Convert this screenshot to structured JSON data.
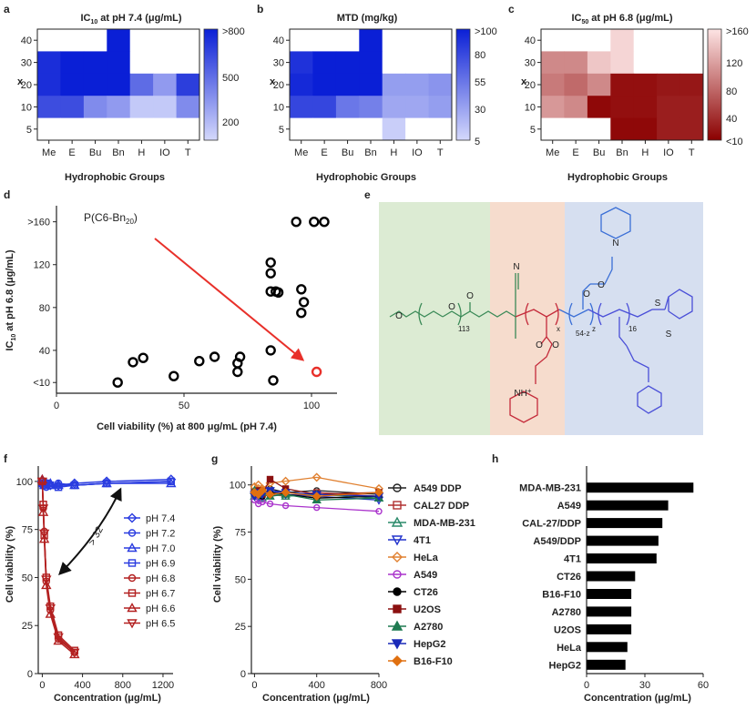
{
  "colors": {
    "blue_dark": "#0a1fd6",
    "blue_light": "#d4d8fb",
    "red_dark": "#8b0000",
    "red_light": "#fde4e4",
    "green_bg": "#dcebd3",
    "orange_bg": "#f6dccd",
    "blue_bg": "#d6dff0",
    "peg_green": "#3b8a57",
    "red_struct": "#c42a3a",
    "blue_struct": "#3b6fd6",
    "blue_struct2": "#4a4fd8"
  },
  "chart_data": [
    {
      "panel": "a",
      "type": "heatmap",
      "title": "IC10 at pH 7.4 (μg/mL)",
      "title_main": "IC",
      "title_sub": "10",
      "title_rest": " at pH 7.4 (μg/mL)",
      "xlabel": "Hydrophobic Groups",
      "ylabel": "x",
      "categories": [
        "Me",
        "E",
        "Bu",
        "Bn",
        "H",
        "IO",
        "T"
      ],
      "y": [
        "40",
        "30",
        "20",
        "10",
        "5"
      ],
      "colorbar_ticks": [
        ">800",
        "500",
        "200"
      ],
      "values": [
        [
          null,
          null,
          null,
          800,
          null,
          null,
          null
        ],
        [
          750,
          800,
          800,
          800,
          null,
          null,
          null
        ],
        [
          750,
          800,
          800,
          800,
          550,
          400,
          700
        ],
        [
          650,
          650,
          450,
          400,
          250,
          250,
          450
        ],
        [
          null,
          null,
          null,
          null,
          null,
          null,
          null
        ]
      ]
    },
    {
      "panel": "b",
      "type": "heatmap",
      "title": "MTD (mg/kg)",
      "xlabel": "Hydrophobic Groups",
      "ylabel": "x",
      "categories": [
        "Me",
        "E",
        "Bu",
        "Bn",
        "H",
        "IO",
        "T"
      ],
      "y": [
        "40",
        "30",
        "20",
        "10",
        "5"
      ],
      "colorbar_ticks": [
        ">100",
        "80",
        "55",
        "30",
        "5"
      ],
      "values": [
        [
          null,
          null,
          null,
          100,
          null,
          null,
          null
        ],
        [
          90,
          100,
          100,
          100,
          null,
          null,
          null
        ],
        [
          95,
          100,
          100,
          100,
          35,
          35,
          40
        ],
        [
          80,
          80,
          55,
          50,
          30,
          30,
          35
        ],
        [
          null,
          null,
          null,
          null,
          10,
          null,
          null
        ]
      ]
    },
    {
      "panel": "c",
      "type": "heatmap",
      "title": "IC50 at pH 6.8 (μg/mL)",
      "title_main": "IC",
      "title_sub": "50",
      "title_rest": " at pH 6.8 (μg/mL)",
      "xlabel": "Hydrophobic Groups",
      "ylabel": "x",
      "categories": [
        "Me",
        "E",
        "Bu",
        "Bn",
        "H",
        "IO",
        "T"
      ],
      "y": [
        "40",
        "30",
        "20",
        "10",
        "5"
      ],
      "colorbar_ticks": [
        ">160",
        "120",
        "80",
        "40",
        "<10"
      ],
      "values": [
        [
          null,
          null,
          null,
          150,
          null,
          null,
          null
        ],
        [
          100,
          100,
          140,
          150,
          null,
          null,
          null
        ],
        [
          90,
          80,
          100,
          20,
          20,
          25,
          25
        ],
        [
          110,
          100,
          15,
          20,
          20,
          30,
          30
        ],
        [
          null,
          null,
          null,
          15,
          15,
          30,
          30
        ]
      ]
    },
    {
      "panel": "d",
      "type": "scatter",
      "xlabel": "Cell viability (%) at 800 μg/mL (pH 7.4)",
      "ylabel": "IC10 at pH 6.8 (μg/mL)",
      "ylabel_main": "IC",
      "ylabel_sub": "10",
      "ylabel_rest": " at pH 6.8 (μg/mL)",
      "xlim": [
        0,
        110
      ],
      "ylim": [
        0,
        175
      ],
      "xticks": [
        "0",
        "50",
        "100"
      ],
      "yticks": [
        "<10",
        "40",
        "80",
        "120",
        ">160"
      ],
      "annotation": "P(C6-Bn20)",
      "annotation_main": "P(C6-Bn",
      "annotation_sub": "20",
      "annotation_end": ")",
      "points": [
        [
          24,
          10
        ],
        [
          30,
          29
        ],
        [
          34,
          33
        ],
        [
          46,
          16
        ],
        [
          56,
          30
        ],
        [
          62,
          34
        ],
        [
          71,
          20
        ],
        [
          71,
          28
        ],
        [
          72,
          34
        ],
        [
          84,
          40
        ],
        [
          85,
          12
        ],
        [
          84,
          95
        ],
        [
          86,
          95
        ],
        [
          84,
          112
        ],
        [
          84,
          122
        ],
        [
          87,
          94
        ],
        [
          94,
          160
        ],
        [
          96,
          97
        ],
        [
          97,
          85
        ],
        [
          96,
          75
        ],
        [
          101,
          160
        ],
        [
          105,
          160
        ]
      ],
      "highlight": [
        102,
        20
      ]
    },
    {
      "panel": "f",
      "type": "line",
      "xlabel": "Concentration (μg/mL)",
      "ylabel": "Cell viability (%)",
      "xlim": [
        -40,
        1300
      ],
      "ylim": [
        0,
        108
      ],
      "xticks": [
        "0",
        "400",
        "800",
        "1200"
      ],
      "yticks": [
        "0",
        "25",
        "50",
        "75",
        "100"
      ],
      "annotation": "> 32",
      "series": [
        {
          "name": "pH 7.4",
          "marker": "diamond",
          "color": "blue",
          "x": [
            0,
            10,
            20,
            40,
            80,
            160,
            320,
            640,
            1280
          ],
          "y": [
            100,
            99,
            98,
            99,
            98,
            98,
            99,
            100,
            101
          ]
        },
        {
          "name": "pH 7.2",
          "marker": "circle",
          "color": "blue",
          "x": [
            0,
            10,
            20,
            40,
            80,
            160,
            320,
            640,
            1280
          ],
          "y": [
            99,
            98,
            99,
            97,
            98,
            99,
            98,
            99,
            100
          ]
        },
        {
          "name": "pH 7.0",
          "marker": "triangle",
          "color": "blue",
          "x": [
            0,
            10,
            20,
            40,
            80,
            160,
            320,
            640,
            1280
          ],
          "y": [
            101,
            99,
            98,
            98,
            99,
            98,
            98,
            99,
            99
          ]
        },
        {
          "name": "pH 6.9",
          "marker": "square",
          "color": "blue",
          "x": [
            0,
            10,
            20,
            40,
            80,
            160,
            320,
            640,
            1280
          ],
          "y": [
            99,
            99,
            98,
            99,
            98,
            97,
            98,
            99,
            100
          ]
        },
        {
          "name": "pH 6.8",
          "marker": "circle",
          "color": "red",
          "x": [
            0,
            10,
            20,
            40,
            80,
            160,
            320
          ],
          "y": [
            100,
            86,
            74,
            48,
            33,
            18,
            11
          ]
        },
        {
          "name": "pH 6.7",
          "marker": "square",
          "color": "red",
          "x": [
            0,
            10,
            20,
            40,
            80,
            160,
            320
          ],
          "y": [
            100,
            88,
            72,
            50,
            35,
            20,
            12
          ]
        },
        {
          "name": "pH 6.6",
          "marker": "triangle",
          "color": "red",
          "x": [
            0,
            10,
            20,
            40,
            80,
            160,
            320
          ],
          "y": [
            101,
            84,
            70,
            46,
            31,
            17,
            10
          ]
        },
        {
          "name": "pH 6.5",
          "marker": "triangle-down",
          "color": "red",
          "x": [
            0,
            10,
            20,
            40,
            80,
            160,
            320
          ],
          "y": [
            100,
            86,
            73,
            49,
            34,
            19,
            11
          ]
        }
      ]
    },
    {
      "panel": "g",
      "type": "line",
      "xlabel": "Concentration (μg/mL)",
      "ylabel": "Cell viability (%)",
      "xlim": [
        -20,
        800
      ],
      "ylim": [
        0,
        110
      ],
      "xticks": [
        "0",
        "400",
        "800"
      ],
      "yticks": [
        "0",
        "25",
        "50",
        "75",
        "100"
      ],
      "x": [
        0,
        25,
        50,
        100,
        200,
        400,
        800
      ],
      "series": [
        {
          "name": "A549 DDP",
          "marker": "circle-open",
          "color": "#222222",
          "y": [
            96,
            97,
            95,
            98,
            96,
            97,
            95
          ]
        },
        {
          "name": "CAL27 DDP",
          "marker": "square-open",
          "color": "#b03030",
          "y": [
            95,
            94,
            96,
            95,
            94,
            96,
            94
          ]
        },
        {
          "name": "MDA-MB-231",
          "marker": "triangle-open",
          "color": "#2a8a6a",
          "y": [
            94,
            95,
            93,
            96,
            94,
            95,
            93
          ]
        },
        {
          "name": "4T1",
          "marker": "triangle-down-open",
          "color": "#2233cc",
          "y": [
            95,
            93,
            94,
            97,
            95,
            94,
            92
          ]
        },
        {
          "name": "HeLa",
          "marker": "diamond-open",
          "color": "#e08030",
          "y": [
            99,
            100,
            98,
            101,
            102,
            104,
            98
          ]
        },
        {
          "name": "A549",
          "marker": "circle-open",
          "color": "#aa33cc",
          "y": [
            92,
            90,
            91,
            90,
            89,
            88,
            86
          ]
        },
        {
          "name": "CT26",
          "marker": "circle",
          "color": "#000000",
          "y": [
            95,
            96,
            94,
            96,
            95,
            93,
            94
          ]
        },
        {
          "name": "U2OS",
          "marker": "square",
          "color": "#8b1010",
          "y": [
            96,
            97,
            95,
            103,
            98,
            95,
            96
          ]
        },
        {
          "name": "A2780",
          "marker": "triangle",
          "color": "#1e7a50",
          "y": [
            97,
            95,
            96,
            94,
            95,
            92,
            93
          ]
        },
        {
          "name": "HepG2",
          "marker": "triangle-down",
          "color": "#1a2ab8",
          "y": [
            94,
            96,
            95,
            97,
            96,
            95,
            94
          ]
        },
        {
          "name": "B16-F10",
          "marker": "diamond",
          "color": "#e07010",
          "y": [
            96,
            95,
            97,
            95,
            96,
            94,
            96
          ]
        }
      ]
    },
    {
      "panel": "h",
      "type": "bar",
      "orientation": "horizontal",
      "xlabel": "Concentration (μg/mL)",
      "xlim": [
        0,
        60
      ],
      "xticks": [
        "0",
        "30",
        "60"
      ],
      "categories": [
        "MDA-MB-231",
        "A549",
        "CAL-27/DDP",
        "A549/DDP",
        "4T1",
        "CT26",
        "B16-F10",
        "A2780",
        "U2OS",
        "HeLa",
        "HepG2"
      ],
      "values": [
        55,
        42,
        39,
        37,
        36,
        25,
        23,
        23,
        23,
        21,
        20
      ]
    }
  ],
  "panel_labels": [
    "a",
    "b",
    "c",
    "d",
    "e",
    "f",
    "g",
    "h"
  ],
  "structure": {
    "subscripts": [
      "113",
      "x",
      "54-z",
      "z",
      "16"
    ],
    "atoms": [
      "O",
      "O",
      "O",
      "N",
      "O",
      "O",
      "O",
      "O",
      "S",
      "S",
      "N",
      "N",
      "H",
      "+"
    ]
  }
}
